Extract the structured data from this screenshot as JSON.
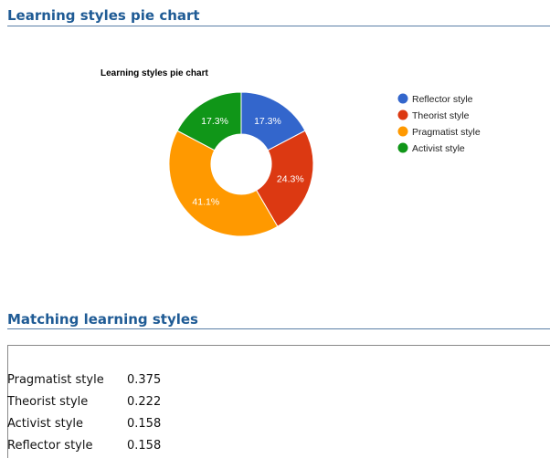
{
  "sections": {
    "chart_heading": "Learning styles pie chart",
    "match_heading": "Matching learning styles"
  },
  "chart_data": {
    "type": "pie",
    "donut": true,
    "title": "Learning styles pie chart",
    "categories": [
      "Reflector style",
      "Theorist style",
      "Pragmatist style",
      "Activist style"
    ],
    "values": [
      17.3,
      24.3,
      41.1,
      17.3
    ],
    "labels": [
      "17.3%",
      "24.3%",
      "41.1%",
      "17.3%"
    ],
    "colors": [
      "#3366cc",
      "#dc3912",
      "#ff9900",
      "#109618"
    ],
    "legend_position": "right"
  },
  "matching": [
    {
      "style": "Pragmatist style",
      "score": "0.375"
    },
    {
      "style": "Theorist style",
      "score": "0.222"
    },
    {
      "style": "Activist style",
      "score": "0.158"
    },
    {
      "style": "Reflector style",
      "score": "0.158"
    }
  ]
}
